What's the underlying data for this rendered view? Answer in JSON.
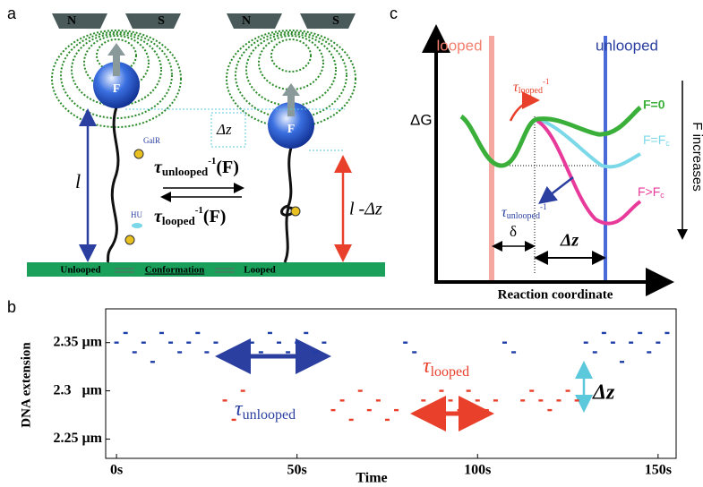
{
  "panel_labels": [
    "a",
    "b",
    "c"
  ],
  "panel_a": {
    "magnets": [
      "N",
      "S",
      "N",
      "S"
    ],
    "force": [
      "F",
      "F"
    ],
    "delta_z": "Δz",
    "galr": "GalR",
    "hu": "HU",
    "length": "l",
    "length_minus": "l -Δz",
    "rate_unlooped": {
      "tau": "τ",
      "sub": "unlooped",
      "sup": "-1",
      "arg": "(F)"
    },
    "rate_looped": {
      "tau": "τ",
      "sub": "looped",
      "sup": "-1",
      "arg": "(F)"
    },
    "conformation": [
      "Unlooped",
      "Conformation",
      "Looped"
    ]
  },
  "chart_data": {
    "type": "scatter",
    "ylabel": "DNA extension",
    "xlabel": "Time",
    "xlim": [
      -3,
      155
    ],
    "ylim": [
      2.23,
      2.385
    ],
    "xticks": [
      {
        "value": 0,
        "label": "0s"
      },
      {
        "value": 50,
        "label": "50s"
      },
      {
        "value": 100,
        "label": "100s"
      },
      {
        "value": 150,
        "label": "150s"
      }
    ],
    "yticks": [
      {
        "value": 2.35,
        "label": "2.35 µm"
      },
      {
        "value": 2.3,
        "label": "2.3   µm"
      },
      {
        "value": 2.25,
        "label": "2.25 µm"
      }
    ],
    "series": [
      {
        "color": "#1f3fa8",
        "x": [
          0,
          2.5,
          5,
          7.5,
          10,
          12.5,
          15,
          17.5,
          20,
          22.5,
          25,
          27.5,
          37.5,
          40,
          42.5,
          45,
          47.5,
          50,
          52.5,
          55,
          57.5,
          80,
          82.5,
          107.5,
          110,
          130,
          132.5,
          135,
          137.5,
          140,
          142.5,
          145,
          147.5,
          150,
          152.5
        ],
        "values": [
          2.35,
          2.36,
          2.34,
          2.35,
          2.33,
          2.36,
          2.35,
          2.34,
          2.35,
          2.36,
          2.34,
          2.35,
          2.35,
          2.34,
          2.36,
          2.35,
          2.34,
          2.35,
          2.36,
          2.34,
          2.35,
          2.35,
          2.34,
          2.35,
          2.34,
          2.35,
          2.34,
          2.36,
          2.35,
          2.33,
          2.35,
          2.36,
          2.34,
          2.35,
          2.36
        ]
      },
      {
        "color": "#e8402a",
        "x": [
          30,
          32.5,
          35,
          60,
          62.5,
          65,
          67.5,
          70,
          72.5,
          75,
          77.5,
          85,
          87.5,
          90,
          92.5,
          95,
          97.5,
          100,
          102.5,
          105,
          112.5,
          115,
          117.5,
          120,
          122.5,
          125,
          127.5
        ],
        "values": [
          2.29,
          2.27,
          2.3,
          2.28,
          2.29,
          2.27,
          2.3,
          2.28,
          2.29,
          2.27,
          2.28,
          2.29,
          2.28,
          2.3,
          2.29,
          2.28,
          2.3,
          2.29,
          2.28,
          2.29,
          2.29,
          2.3,
          2.29,
          2.28,
          2.29,
          2.3,
          2.29
        ]
      }
    ],
    "annotations": {
      "tau_unlooped": {
        "tau": "τ",
        "sub": "unlooped"
      },
      "tau_looped": {
        "tau": "τ",
        "sub": "looped"
      },
      "delta_z": "Δz"
    }
  },
  "panel_c": {
    "looped": "looped",
    "unlooped": "unlooped",
    "dg": "ΔG",
    "f0": "F=0",
    "fc": {
      "main": "F=F",
      "sub": "c"
    },
    "fgc": {
      "main": "F>F",
      "sub": "c"
    },
    "f_increases": "F increases",
    "tau_looped": {
      "tau": "τ",
      "sub": "looped",
      "sup": "-1"
    },
    "tau_unlooped": {
      "tau": "τ",
      "sub": "unlooped",
      "sup": "-1"
    },
    "delta": "δ",
    "dz": "Δz",
    "xlabel": "Reaction coordinate"
  }
}
